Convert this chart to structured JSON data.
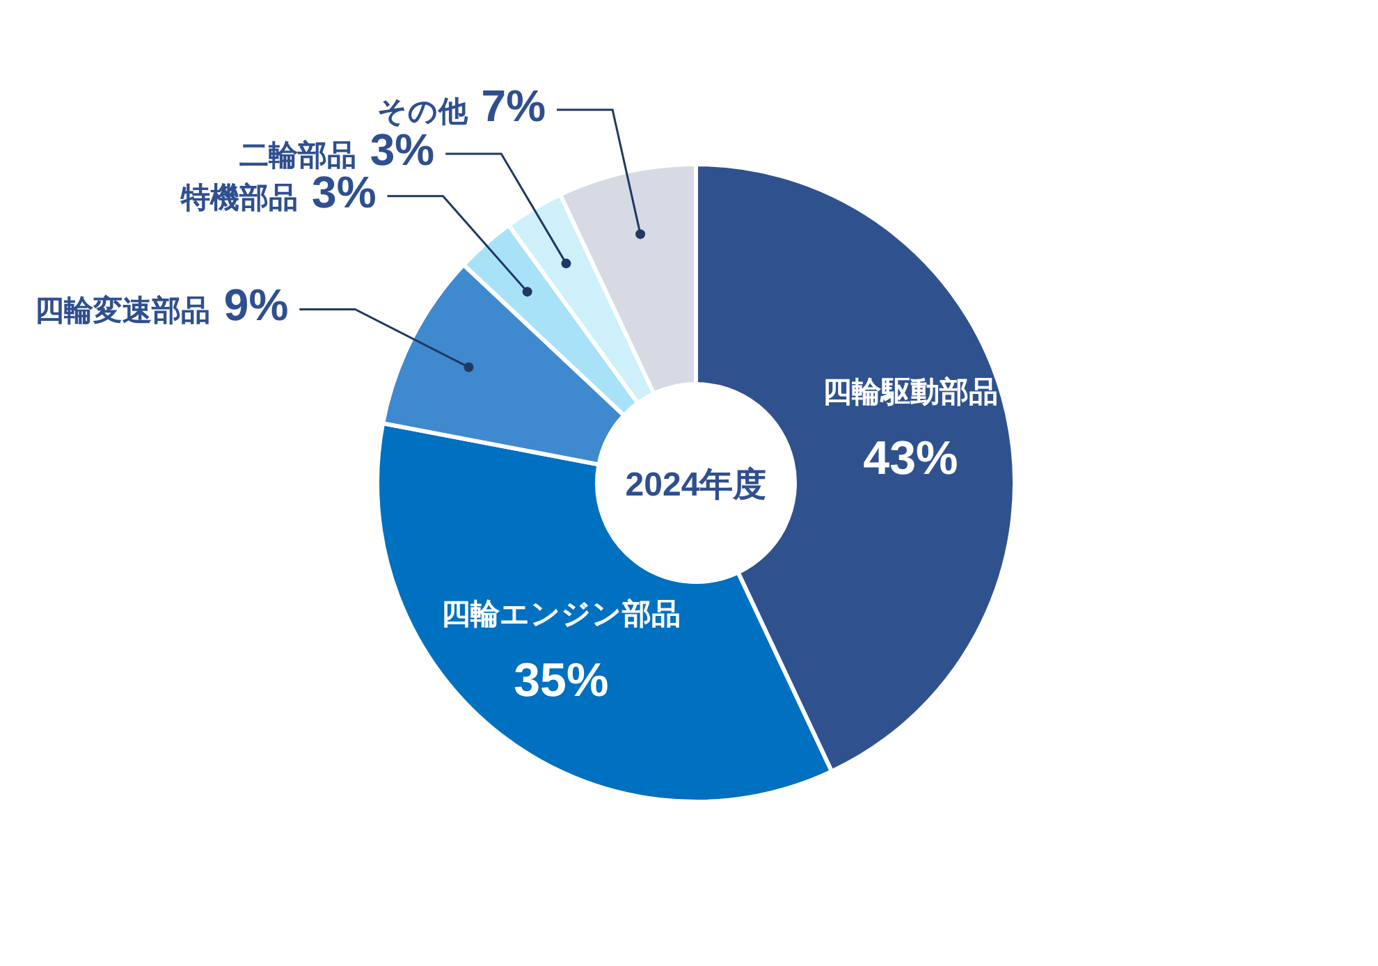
{
  "chart_data": {
    "type": "donut",
    "title": "2024年度",
    "categories": [
      "四輪駆動部品",
      "四輪エンジン部品",
      "四輪変速部品",
      "特機部品",
      "二輪部品",
      "その他"
    ],
    "values": [
      43,
      35,
      9,
      3,
      3,
      7
    ],
    "value_labels": [
      "43%",
      "35%",
      "9%",
      "3%",
      "3%",
      "7%"
    ],
    "colors": [
      "#2f528f",
      "#0070c0",
      "#3f89cf",
      "#a8e2f9",
      "#cdf0fb",
      "#d5dae4"
    ]
  }
}
